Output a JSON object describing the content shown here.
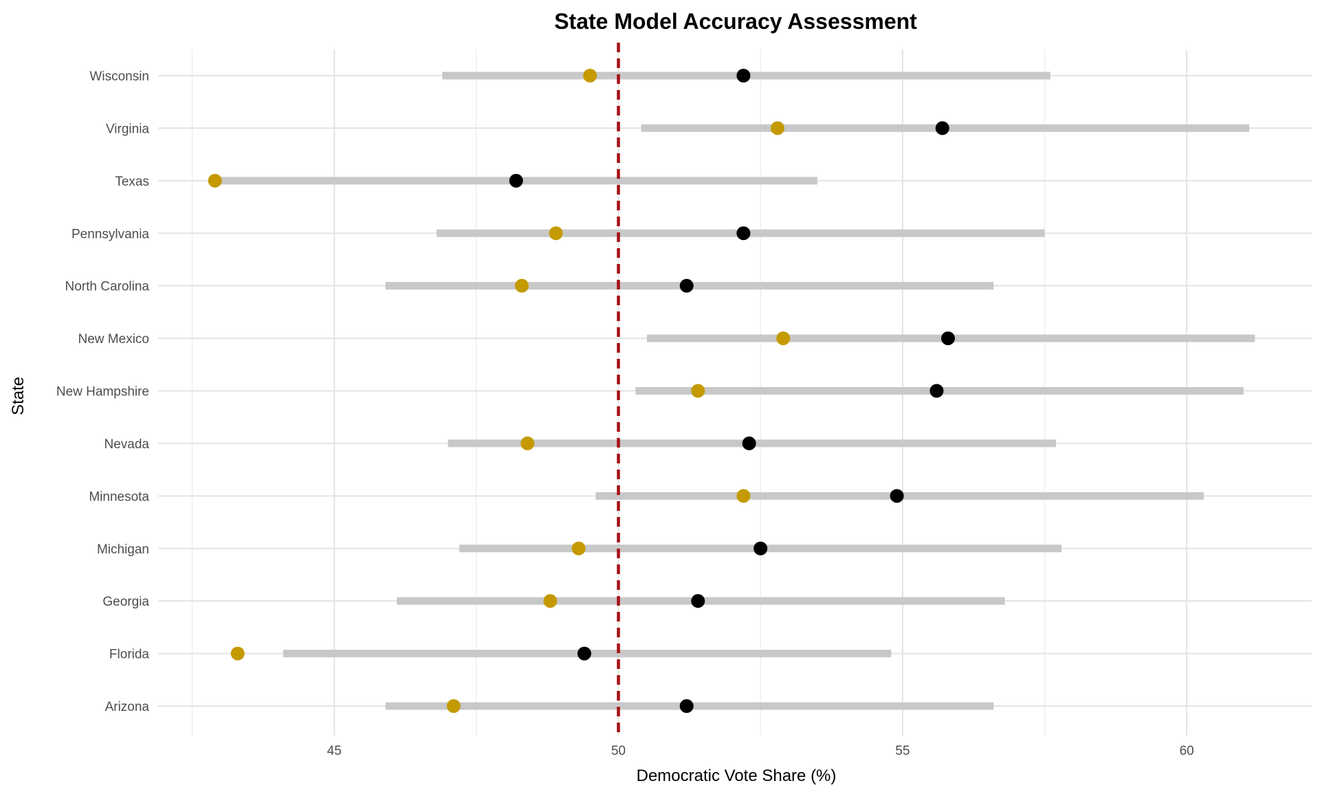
{
  "chart_data": {
    "type": "scatter",
    "title": "State Model Accuracy Assessment",
    "xlabel": "Democratic Vote Share (%)",
    "ylabel": "State",
    "xlim": [
      41.9,
      62.2
    ],
    "x_ticks": [
      45,
      50,
      55,
      60
    ],
    "reference_line": {
      "x": 50,
      "style": "dashed",
      "color": "#a50f15"
    },
    "categories": [
      "Wisconsin",
      "Virginia",
      "Texas",
      "Pennsylvania",
      "North Carolina",
      "New Mexico",
      "New Hampshire",
      "Nevada",
      "Minnesota",
      "Michigan",
      "Georgia",
      "Florida",
      "Arizona"
    ],
    "series": [
      {
        "kind": "interval",
        "color": "#c8c8c8",
        "low": [
          46.9,
          50.4,
          42.8,
          46.8,
          45.9,
          50.5,
          50.3,
          47.0,
          49.6,
          47.2,
          46.1,
          44.1,
          45.9
        ],
        "high": [
          57.6,
          61.1,
          53.5,
          57.5,
          56.6,
          61.2,
          61.0,
          57.7,
          60.3,
          57.8,
          56.8,
          54.8,
          56.6
        ]
      },
      {
        "kind": "point",
        "color": "#000000",
        "values": [
          52.2,
          55.7,
          48.2,
          52.2,
          51.2,
          55.8,
          55.6,
          52.3,
          54.9,
          52.5,
          51.4,
          49.4,
          51.2
        ]
      },
      {
        "kind": "point",
        "color": "#c49a00",
        "values": [
          49.5,
          52.8,
          42.9,
          48.9,
          48.3,
          52.9,
          51.4,
          48.4,
          52.2,
          49.3,
          48.8,
          43.3,
          47.1
        ]
      }
    ],
    "grid": true,
    "legend": "none"
  }
}
